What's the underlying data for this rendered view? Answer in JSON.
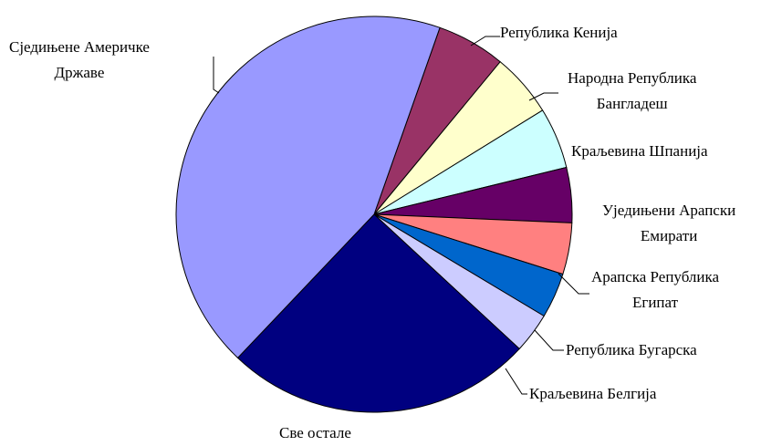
{
  "chart_data": {
    "type": "pie",
    "title": "",
    "start_angle_deg": -70.6,
    "direction": "clockwise",
    "slices": [
      {
        "label": "Републикa Кенија",
        "label_lines": [
          "Републикa Кенија"
        ],
        "value": 5.6,
        "color": "#993366"
      },
      {
        "label": "Народна Република Бангладеш",
        "label_lines": [
          "Народна Република",
          "Бангладеш"
        ],
        "value": 5.2,
        "color": "#ffffcc"
      },
      {
        "label": "Краљевина Шпанија",
        "label_lines": [
          "Краљевина Шпанија"
        ],
        "value": 5.0,
        "color": "#ccffff"
      },
      {
        "label": "Уједињени Арапски Емирати",
        "label_lines": [
          "Уједињени Арапски",
          "Емирати"
        ],
        "value": 4.5,
        "color": "#660066"
      },
      {
        "label": "Арапска Република Египат",
        "label_lines": [
          "Арапска Република",
          "Египат"
        ],
        "value": 4.2,
        "color": "#ff8080"
      },
      {
        "label": "Република Бугарска",
        "label_lines": [
          "Република Бугарска"
        ],
        "value": 3.7,
        "color": "#0066cc"
      },
      {
        "label": "Краљевина Белгија",
        "label_lines": [
          "Краљевина Белгија"
        ],
        "value": 3.3,
        "color": "#ccccff"
      },
      {
        "label": "Све остале",
        "label_lines": [
          "Све остале"
        ],
        "value": 25.2,
        "color": "#000080"
      },
      {
        "label": "Сједињене Америчке Државе",
        "label_lines": [
          "Сједињене Америчке",
          "Државе"
        ],
        "value": 43.3,
        "color": "#9999ff"
      }
    ]
  }
}
